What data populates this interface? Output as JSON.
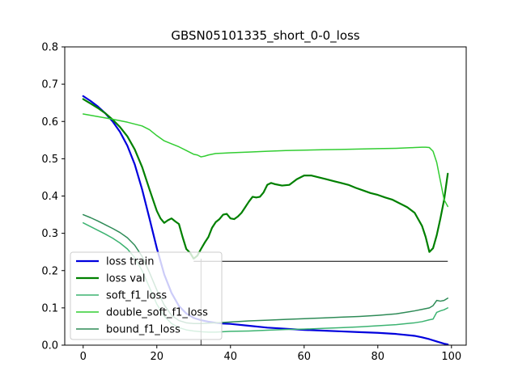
{
  "chart_data": {
    "type": "line",
    "title": "GBSN05101335_short_0-0_loss",
    "xlabel": "",
    "ylabel": "",
    "xlim": [
      -5,
      104
    ],
    "ylim": [
      0.0,
      0.8
    ],
    "x_ticks": [
      0,
      20,
      40,
      60,
      80,
      100
    ],
    "y_ticks": [
      0.0,
      0.1,
      0.2,
      0.3,
      0.4,
      0.5,
      0.6,
      0.7,
      0.8
    ],
    "x_tick_labels": [
      "0",
      "20",
      "40",
      "60",
      "80",
      "100"
    ],
    "y_tick_labels": [
      "0.0",
      "0.1",
      "0.2",
      "0.3",
      "0.4",
      "0.5",
      "0.6",
      "0.7",
      "0.8"
    ],
    "grid": false,
    "legend_position": "lower-left",
    "series": [
      {
        "name": "loss train",
        "color": "#0000dd",
        "width": 2.2,
        "x": [
          0,
          2,
          4,
          6,
          8,
          10,
          12,
          14,
          16,
          18,
          20,
          22,
          24,
          26,
          28,
          30,
          32,
          34,
          36,
          38,
          40,
          45,
          50,
          55,
          60,
          65,
          70,
          75,
          80,
          85,
          90,
          92,
          94,
          96,
          98,
          99
        ],
        "y": [
          0.668,
          0.655,
          0.64,
          0.622,
          0.6,
          0.572,
          0.535,
          0.485,
          0.418,
          0.34,
          0.26,
          0.19,
          0.14,
          0.105,
          0.085,
          0.073,
          0.067,
          0.063,
          0.06,
          0.058,
          0.057,
          0.052,
          0.047,
          0.044,
          0.041,
          0.039,
          0.037,
          0.035,
          0.033,
          0.03,
          0.025,
          0.021,
          0.016,
          0.01,
          0.004,
          0.002
        ]
      },
      {
        "name": "loss val",
        "color": "#008000",
        "width": 2.2,
        "x": [
          0,
          2,
          4,
          6,
          8,
          10,
          12,
          14,
          16,
          18,
          20,
          21,
          22,
          23,
          24,
          25,
          26,
          27,
          28,
          29,
          30,
          31,
          32,
          33,
          34,
          35,
          36,
          37,
          38,
          39,
          40,
          41,
          42,
          43,
          44,
          45,
          46,
          47,
          48,
          49,
          50,
          51,
          52,
          54,
          56,
          58,
          60,
          62,
          64,
          66,
          68,
          70,
          72,
          74,
          76,
          78,
          80,
          82,
          84,
          86,
          88,
          90,
          92,
          93,
          94,
          95,
          96,
          97,
          98,
          99
        ],
        "y": [
          0.66,
          0.648,
          0.636,
          0.622,
          0.605,
          0.585,
          0.56,
          0.525,
          0.478,
          0.418,
          0.36,
          0.34,
          0.328,
          0.335,
          0.34,
          0.332,
          0.325,
          0.29,
          0.258,
          0.248,
          0.232,
          0.24,
          0.258,
          0.275,
          0.29,
          0.315,
          0.33,
          0.338,
          0.35,
          0.352,
          0.34,
          0.338,
          0.345,
          0.355,
          0.37,
          0.385,
          0.398,
          0.396,
          0.398,
          0.41,
          0.43,
          0.435,
          0.432,
          0.428,
          0.43,
          0.445,
          0.455,
          0.455,
          0.45,
          0.445,
          0.44,
          0.435,
          0.43,
          0.422,
          0.415,
          0.408,
          0.403,
          0.396,
          0.39,
          0.38,
          0.37,
          0.355,
          0.32,
          0.29,
          0.25,
          0.26,
          0.295,
          0.34,
          0.39,
          0.46
        ]
      },
      {
        "name": "soft_f1_loss",
        "color": "#3cb371",
        "width": 1.5,
        "x": [
          0,
          2,
          4,
          6,
          8,
          10,
          12,
          14,
          16,
          18,
          20,
          22,
          24,
          26,
          28,
          30,
          32,
          34,
          36,
          38,
          40,
          45,
          50,
          55,
          60,
          65,
          70,
          75,
          80,
          85,
          90,
          92,
          94,
          95,
          96,
          97,
          98,
          99
        ],
        "y": [
          0.328,
          0.318,
          0.308,
          0.298,
          0.287,
          0.274,
          0.258,
          0.235,
          0.2,
          0.155,
          0.11,
          0.078,
          0.058,
          0.047,
          0.041,
          0.038,
          0.036,
          0.035,
          0.035,
          0.036,
          0.037,
          0.038,
          0.04,
          0.042,
          0.043,
          0.045,
          0.047,
          0.049,
          0.052,
          0.055,
          0.06,
          0.063,
          0.068,
          0.07,
          0.088,
          0.092,
          0.095,
          0.1
        ]
      },
      {
        "name": "double_soft_f1_loss",
        "color": "#32cd32",
        "width": 1.5,
        "x": [
          0,
          4,
          8,
          12,
          16,
          18,
          20,
          22,
          24,
          26,
          28,
          30,
          31,
          32,
          33,
          34,
          36,
          38,
          40,
          45,
          50,
          55,
          60,
          65,
          70,
          75,
          80,
          85,
          90,
          92,
          93,
          94,
          95,
          96,
          97,
          98,
          99
        ],
        "y": [
          0.62,
          0.613,
          0.606,
          0.598,
          0.588,
          0.578,
          0.562,
          0.548,
          0.54,
          0.532,
          0.522,
          0.512,
          0.51,
          0.505,
          0.507,
          0.51,
          0.514,
          0.515,
          0.516,
          0.518,
          0.52,
          0.522,
          0.523,
          0.524,
          0.525,
          0.526,
          0.527,
          0.528,
          0.53,
          0.531,
          0.531,
          0.53,
          0.52,
          0.49,
          0.44,
          0.39,
          0.372
        ]
      },
      {
        "name": "bound_f1_loss",
        "color": "#2e8b57",
        "width": 1.5,
        "x": [
          0,
          2,
          4,
          6,
          8,
          10,
          12,
          14,
          16,
          18,
          20,
          22,
          24,
          26,
          28,
          30,
          32,
          34,
          36,
          38,
          40,
          45,
          50,
          55,
          60,
          65,
          70,
          75,
          80,
          85,
          90,
          92,
          94,
          95,
          96,
          97,
          98,
          99
        ],
        "y": [
          0.35,
          0.342,
          0.333,
          0.323,
          0.313,
          0.302,
          0.288,
          0.268,
          0.238,
          0.195,
          0.148,
          0.108,
          0.08,
          0.066,
          0.06,
          0.058,
          0.058,
          0.059,
          0.06,
          0.061,
          0.062,
          0.065,
          0.067,
          0.069,
          0.071,
          0.073,
          0.075,
          0.077,
          0.08,
          0.084,
          0.092,
          0.096,
          0.1,
          0.106,
          0.12,
          0.118,
          0.12,
          0.126
        ]
      }
    ],
    "reference_lines": [
      {
        "orientation": "horizontal",
        "y": 0.225,
        "x_range": [
          30,
          99
        ],
        "color": "#000000"
      },
      {
        "orientation": "vertical",
        "x": 32,
        "y_range": [
          0.0,
          0.232
        ],
        "color": "#333333"
      }
    ]
  }
}
